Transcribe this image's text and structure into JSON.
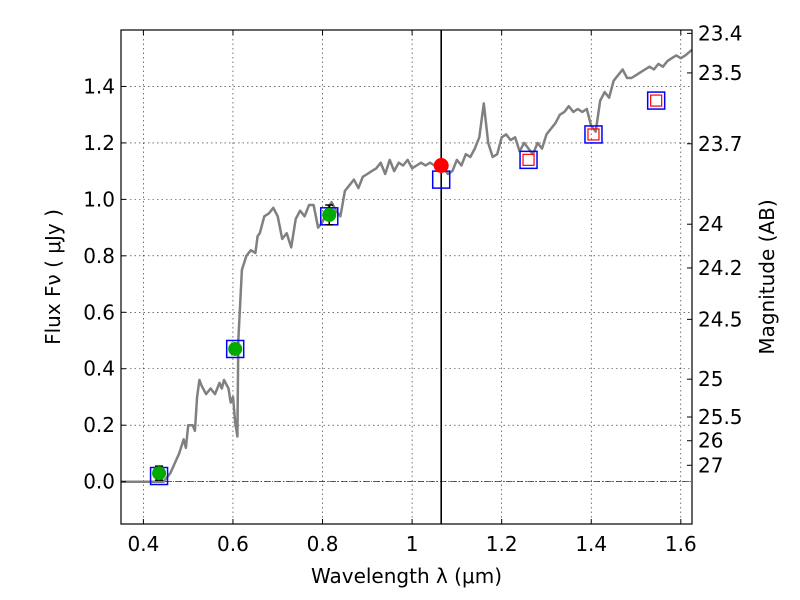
{
  "chart_data": {
    "type": "line",
    "xlabel": "Wavelength  λ (μm)",
    "ylabel": "Flux  Fν  ( μJy )",
    "ylabel_right": "Magnitude (AB)",
    "xlim": [
      0.35,
      1.625
    ],
    "ylim": [
      -0.15,
      1.6
    ],
    "grid": true,
    "x_ticks": [
      0.4,
      0.6,
      0.8,
      1.0,
      1.2,
      1.4,
      1.6
    ],
    "x_tick_labels": [
      "0.4",
      "0.6",
      "0.8",
      "1",
      "1.2",
      "1.4",
      "1.6"
    ],
    "y_ticks": [
      0.0,
      0.2,
      0.4,
      0.6,
      0.8,
      1.0,
      1.2,
      1.4
    ],
    "y_tick_labels": [
      "0.0",
      "0.2",
      "0.4",
      "0.6",
      "0.8",
      "1.0",
      "1.2",
      "1.4"
    ],
    "right_ticks": [
      {
        "flux": 1.588,
        "label": "23.4"
      },
      {
        "flux": 1.448,
        "label": "23.5"
      },
      {
        "flux": 1.197,
        "label": "23.7"
      },
      {
        "flux": 0.912,
        "label": "24"
      },
      {
        "flux": 0.757,
        "label": "24.2"
      },
      {
        "flux": 0.575,
        "label": "24.5"
      },
      {
        "flux": 0.363,
        "label": "25"
      },
      {
        "flux": 0.229,
        "label": "25.5"
      },
      {
        "flux": 0.145,
        "label": "26"
      },
      {
        "flux": 0.058,
        "label": "27"
      }
    ],
    "vline_x": 1.065,
    "model_spectrum": {
      "color": "#808080",
      "points": [
        [
          0.35,
          0.0
        ],
        [
          0.445,
          0.0
        ],
        [
          0.46,
          0.03
        ],
        [
          0.48,
          0.1
        ],
        [
          0.49,
          0.15
        ],
        [
          0.495,
          0.12
        ],
        [
          0.5,
          0.2
        ],
        [
          0.51,
          0.2
        ],
        [
          0.515,
          0.18
        ],
        [
          0.52,
          0.3
        ],
        [
          0.525,
          0.36
        ],
        [
          0.53,
          0.34
        ],
        [
          0.54,
          0.31
        ],
        [
          0.55,
          0.33
        ],
        [
          0.56,
          0.31
        ],
        [
          0.57,
          0.35
        ],
        [
          0.575,
          0.33
        ],
        [
          0.58,
          0.36
        ],
        [
          0.59,
          0.33
        ],
        [
          0.595,
          0.28
        ],
        [
          0.6,
          0.3
        ],
        [
          0.605,
          0.21
        ],
        [
          0.61,
          0.16
        ],
        [
          0.612,
          0.5
        ],
        [
          0.62,
          0.75
        ],
        [
          0.63,
          0.8
        ],
        [
          0.64,
          0.82
        ],
        [
          0.65,
          0.81
        ],
        [
          0.655,
          0.87
        ],
        [
          0.66,
          0.88
        ],
        [
          0.67,
          0.94
        ],
        [
          0.68,
          0.95
        ],
        [
          0.69,
          0.97
        ],
        [
          0.7,
          0.94
        ],
        [
          0.71,
          0.86
        ],
        [
          0.72,
          0.88
        ],
        [
          0.73,
          0.83
        ],
        [
          0.74,
          0.93
        ],
        [
          0.75,
          0.96
        ],
        [
          0.76,
          0.94
        ],
        [
          0.77,
          0.98
        ],
        [
          0.78,
          0.98
        ],
        [
          0.79,
          0.9
        ],
        [
          0.8,
          0.92
        ],
        [
          0.81,
          0.96
        ],
        [
          0.82,
          0.99
        ],
        [
          0.83,
          0.96
        ],
        [
          0.84,
          0.94
        ],
        [
          0.85,
          1.03
        ],
        [
          0.86,
          1.05
        ],
        [
          0.87,
          1.07
        ],
        [
          0.88,
          1.04
        ],
        [
          0.89,
          1.08
        ],
        [
          0.9,
          1.09
        ],
        [
          0.91,
          1.1
        ],
        [
          0.92,
          1.11
        ],
        [
          0.93,
          1.13
        ],
        [
          0.94,
          1.09
        ],
        [
          0.95,
          1.14
        ],
        [
          0.96,
          1.1
        ],
        [
          0.97,
          1.13
        ],
        [
          0.98,
          1.12
        ],
        [
          0.99,
          1.14
        ],
        [
          1.0,
          1.11
        ],
        [
          1.01,
          1.12
        ],
        [
          1.02,
          1.13
        ],
        [
          1.03,
          1.12
        ],
        [
          1.04,
          1.13
        ],
        [
          1.05,
          1.12
        ],
        [
          1.06,
          1.1
        ],
        [
          1.07,
          1.11
        ],
        [
          1.08,
          1.09
        ],
        [
          1.09,
          1.1
        ],
        [
          1.1,
          1.14
        ],
        [
          1.11,
          1.12
        ],
        [
          1.12,
          1.16
        ],
        [
          1.13,
          1.15
        ],
        [
          1.14,
          1.18
        ],
        [
          1.15,
          1.22
        ],
        [
          1.16,
          1.34
        ],
        [
          1.17,
          1.2
        ],
        [
          1.18,
          1.15
        ],
        [
          1.19,
          1.16
        ],
        [
          1.2,
          1.22
        ],
        [
          1.21,
          1.23
        ],
        [
          1.22,
          1.21
        ],
        [
          1.23,
          1.22
        ],
        [
          1.24,
          1.17
        ],
        [
          1.25,
          1.2
        ],
        [
          1.26,
          1.18
        ],
        [
          1.27,
          1.16
        ],
        [
          1.28,
          1.2
        ],
        [
          1.29,
          1.18
        ],
        [
          1.3,
          1.23
        ],
        [
          1.31,
          1.25
        ],
        [
          1.32,
          1.27
        ],
        [
          1.33,
          1.3
        ],
        [
          1.34,
          1.31
        ],
        [
          1.35,
          1.33
        ],
        [
          1.36,
          1.31
        ],
        [
          1.37,
          1.32
        ],
        [
          1.38,
          1.31
        ],
        [
          1.39,
          1.32
        ],
        [
          1.4,
          1.26
        ],
        [
          1.41,
          1.24
        ],
        [
          1.42,
          1.35
        ],
        [
          1.43,
          1.38
        ],
        [
          1.44,
          1.36
        ],
        [
          1.45,
          1.42
        ],
        [
          1.46,
          1.44
        ],
        [
          1.47,
          1.46
        ],
        [
          1.48,
          1.43
        ],
        [
          1.49,
          1.43
        ],
        [
          1.5,
          1.44
        ],
        [
          1.51,
          1.45
        ],
        [
          1.52,
          1.46
        ],
        [
          1.53,
          1.47
        ],
        [
          1.54,
          1.46
        ],
        [
          1.55,
          1.48
        ],
        [
          1.56,
          1.47
        ],
        [
          1.57,
          1.49
        ],
        [
          1.58,
          1.5
        ],
        [
          1.59,
          1.51
        ],
        [
          1.6,
          1.5
        ],
        [
          1.61,
          1.51
        ],
        [
          1.625,
          1.53
        ]
      ]
    },
    "observed_points": [
      {
        "x": 0.435,
        "y": 0.03,
        "err": 0.025,
        "color": "#00aa00"
      },
      {
        "x": 0.605,
        "y": 0.47,
        "err": 0.02,
        "color": "#00aa00"
      },
      {
        "x": 0.815,
        "y": 0.945,
        "err": 0.035,
        "color": "#00aa00"
      }
    ],
    "red_point": {
      "x": 1.065,
      "y": 1.12,
      "color": "#ff0000"
    },
    "model_boxes": [
      {
        "x": 0.435,
        "y": 0.02
      },
      {
        "x": 0.605,
        "y": 0.47
      },
      {
        "x": 0.815,
        "y": 0.94
      },
      {
        "x": 1.065,
        "y": 1.07
      },
      {
        "x": 1.26,
        "y": 1.14
      },
      {
        "x": 1.405,
        "y": 1.23
      },
      {
        "x": 1.545,
        "y": 1.35
      }
    ],
    "upper_limit_boxes": [
      {
        "x": 1.26,
        "y": 1.14
      },
      {
        "x": 1.405,
        "y": 1.23
      },
      {
        "x": 1.545,
        "y": 1.35
      }
    ],
    "colors": {
      "model_box": "#0000ff",
      "upper_limit_box": "#ff0000",
      "axes": "#000000"
    }
  }
}
